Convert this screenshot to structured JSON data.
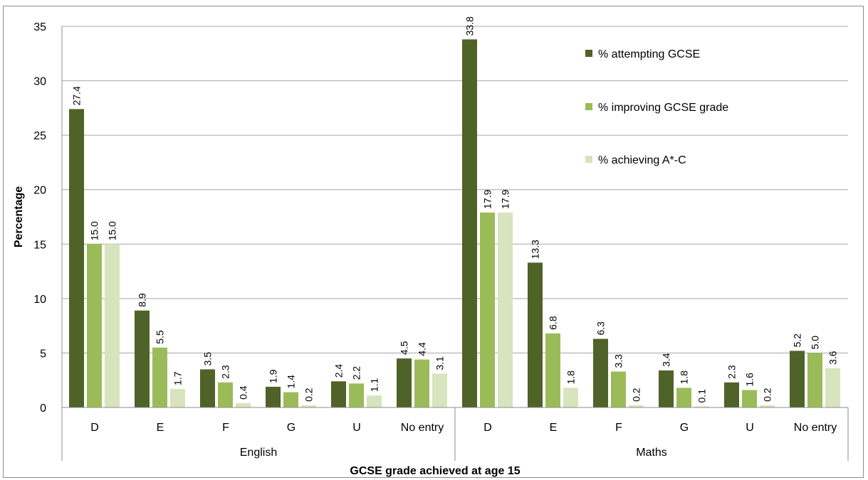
{
  "chart_data": {
    "type": "bar",
    "title": "",
    "xlabel": "GCSE grade achieved at age 15",
    "ylabel": "Percentage",
    "ylim": [
      0,
      35
    ],
    "yticks": [
      0,
      5,
      10,
      15,
      20,
      25,
      30,
      35
    ],
    "grid": true,
    "legend_position": "top-right",
    "groups": [
      {
        "name": "English",
        "categories": [
          "D",
          "E",
          "F",
          "G",
          "U",
          "No entry"
        ]
      },
      {
        "name": "Maths",
        "categories": [
          "D",
          "E",
          "F",
          "G",
          "U",
          "No entry"
        ]
      }
    ],
    "categories": [
      "D",
      "E",
      "F",
      "G",
      "U",
      "No entry",
      "D",
      "E",
      "F",
      "G",
      "U",
      "No entry"
    ],
    "series": [
      {
        "name": "% attempting GCSE",
        "color": "#4f6228",
        "values": [
          27.4,
          8.9,
          3.5,
          1.9,
          2.4,
          4.5,
          33.8,
          13.3,
          6.3,
          3.4,
          2.3,
          5.2
        ],
        "labels": [
          "27.4",
          "8.9",
          "3.5",
          "1.9",
          "2.4",
          "4.5",
          "33.8",
          "13.3",
          "6.3",
          "3.4",
          "2.3",
          "5.2"
        ]
      },
      {
        "name": "% improving GCSE grade",
        "color": "#9bbb59",
        "values": [
          15.0,
          5.5,
          2.3,
          1.4,
          2.2,
          4.4,
          17.9,
          6.8,
          3.3,
          1.8,
          1.6,
          5.0
        ],
        "labels": [
          "15.0",
          "5.5",
          "2.3",
          "1.4",
          "2.2",
          "4.4",
          "17.9",
          "6.8",
          "3.3",
          "1.8",
          "1.6",
          "5.0"
        ]
      },
      {
        "name": "% achieving A*-C",
        "color": "#d7e4bd",
        "values": [
          15.0,
          1.7,
          0.4,
          0.2,
          1.1,
          3.1,
          17.9,
          1.8,
          0.2,
          0.1,
          0.2,
          3.6
        ],
        "labels": [
          "15.0",
          "1.7",
          "0.4",
          "0.2",
          "1.1",
          "3.1",
          "17.9",
          "1.8",
          "0.2",
          "0.1",
          "0.2",
          "3.6"
        ]
      }
    ]
  }
}
